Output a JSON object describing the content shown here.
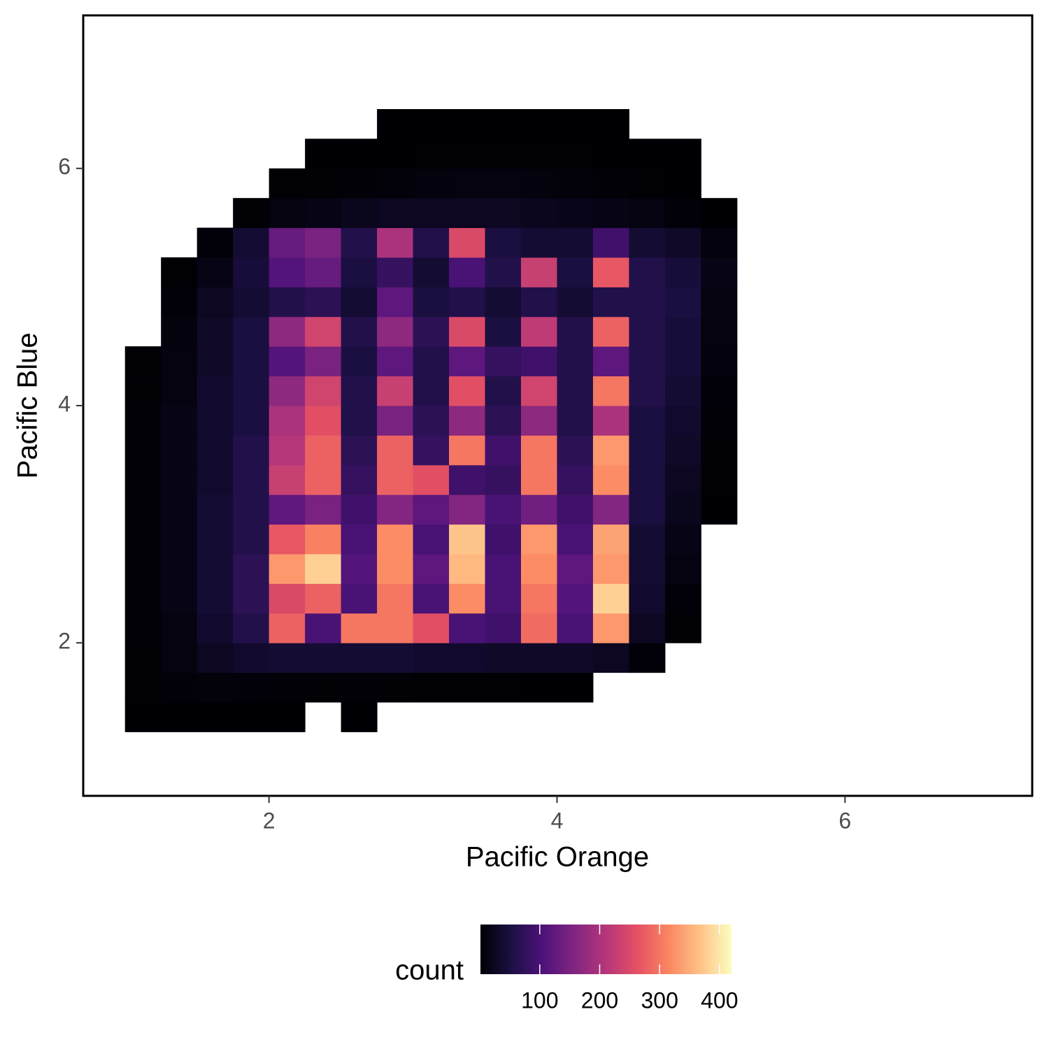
{
  "chart_data": {
    "type": "bin2d",
    "x_label": "Pacific Orange",
    "y_label": "Pacific Blue",
    "xlim": [
      0.71,
      7.3
    ],
    "ylim": [
      0.71,
      7.29
    ],
    "xticks": [
      2,
      4,
      6
    ],
    "yticks": [
      2,
      4,
      6
    ],
    "x_edges": [
      1.0,
      1.25,
      1.5,
      1.75,
      2.0,
      2.25,
      2.5,
      2.75,
      3.0,
      3.25,
      3.5,
      3.75,
      4.0,
      4.25,
      4.5,
      4.75,
      5.0,
      5.25,
      5.5
    ],
    "y_edges": [
      1.25,
      1.5,
      1.75,
      2.0,
      2.25,
      2.5,
      2.75,
      3.0,
      3.25,
      3.5,
      3.75,
      4.0,
      4.25,
      4.5,
      4.75,
      5.0,
      5.25,
      5.5,
      5.75,
      6.0,
      6.25,
      6.5
    ],
    "counts": [
      [
        1,
        1,
        1,
        1,
        1,
        null,
        1,
        null,
        null,
        null,
        null,
        null,
        null,
        null,
        null,
        null,
        null,
        null
      ],
      [
        2,
        5,
        6,
        5,
        4,
        3,
        4,
        3,
        2,
        2,
        2,
        1,
        1,
        null,
        null,
        null,
        null,
        null
      ],
      [
        3,
        10,
        25,
        35,
        40,
        40,
        40,
        40,
        35,
        35,
        30,
        30,
        30,
        25,
        5,
        null,
        null,
        null
      ],
      [
        4,
        12,
        35,
        60,
        280,
        100,
        300,
        300,
        260,
        100,
        90,
        290,
        100,
        330,
        25,
        3,
        null,
        null
      ],
      [
        4,
        15,
        40,
        70,
        250,
        280,
        100,
        300,
        100,
        320,
        100,
        300,
        110,
        380,
        35,
        5,
        null,
        null
      ],
      [
        4,
        15,
        40,
        70,
        330,
        380,
        110,
        320,
        120,
        360,
        100,
        320,
        120,
        330,
        40,
        10,
        null,
        null
      ],
      [
        4,
        15,
        40,
        60,
        270,
        310,
        100,
        320,
        100,
        370,
        90,
        330,
        100,
        340,
        40,
        15,
        null,
        null
      ],
      [
        4,
        15,
        40,
        60,
        120,
        150,
        90,
        160,
        120,
        160,
        100,
        140,
        90,
        160,
        50,
        20,
        1,
        null
      ],
      [
        4,
        15,
        35,
        60,
        230,
        280,
        80,
        280,
        260,
        90,
        80,
        300,
        80,
        320,
        50,
        25,
        2,
        null
      ],
      [
        4,
        15,
        35,
        60,
        210,
        280,
        70,
        280,
        80,
        300,
        90,
        300,
        70,
        330,
        50,
        30,
        3,
        null
      ],
      [
        4,
        15,
        35,
        50,
        200,
        260,
        60,
        150,
        70,
        170,
        70,
        170,
        60,
        200,
        50,
        35,
        4,
        null
      ],
      [
        3,
        12,
        35,
        50,
        170,
        240,
        60,
        230,
        60,
        260,
        60,
        240,
        60,
        300,
        60,
        40,
        5,
        null
      ],
      [
        2,
        10,
        30,
        50,
        110,
        150,
        50,
        120,
        60,
        120,
        80,
        90,
        60,
        120,
        60,
        45,
        8,
        null
      ],
      [
        null,
        8,
        30,
        50,
        170,
        240,
        60,
        170,
        70,
        250,
        50,
        220,
        60,
        280,
        60,
        45,
        10,
        null
      ],
      [
        null,
        5,
        25,
        40,
        60,
        70,
        40,
        120,
        50,
        60,
        40,
        60,
        40,
        60,
        60,
        50,
        12,
        null
      ],
      [
        null,
        2,
        15,
        45,
        110,
        130,
        50,
        80,
        40,
        100,
        60,
        230,
        50,
        270,
        60,
        45,
        15,
        null
      ],
      [
        null,
        null,
        5,
        40,
        130,
        150,
        60,
        200,
        60,
        250,
        50,
        40,
        40,
        90,
        40,
        30,
        8,
        null
      ],
      [
        null,
        null,
        null,
        3,
        10,
        15,
        20,
        25,
        25,
        25,
        25,
        22,
        18,
        15,
        10,
        5,
        1,
        null
      ],
      [
        null,
        null,
        null,
        null,
        2,
        3,
        4,
        6,
        8,
        10,
        10,
        8,
        6,
        4,
        2,
        1,
        null,
        null
      ],
      [
        null,
        null,
        null,
        null,
        null,
        1,
        1,
        1,
        2,
        2,
        2,
        2,
        2,
        1,
        1,
        1,
        null,
        null
      ],
      [
        null,
        null,
        null,
        null,
        null,
        null,
        null,
        1,
        1,
        1,
        1,
        1,
        1,
        1,
        null,
        null,
        null,
        null
      ]
    ],
    "legend_title": "count",
    "fill_lim": [
      1,
      420
    ],
    "fill_ticks": [
      100,
      200,
      300,
      400
    ],
    "colorscale": [
      "#000004",
      "#1c1044",
      "#4f127b",
      "#812581",
      "#b5367a",
      "#e55064",
      "#fb8761",
      "#fec287",
      "#fcfdbf"
    ]
  }
}
